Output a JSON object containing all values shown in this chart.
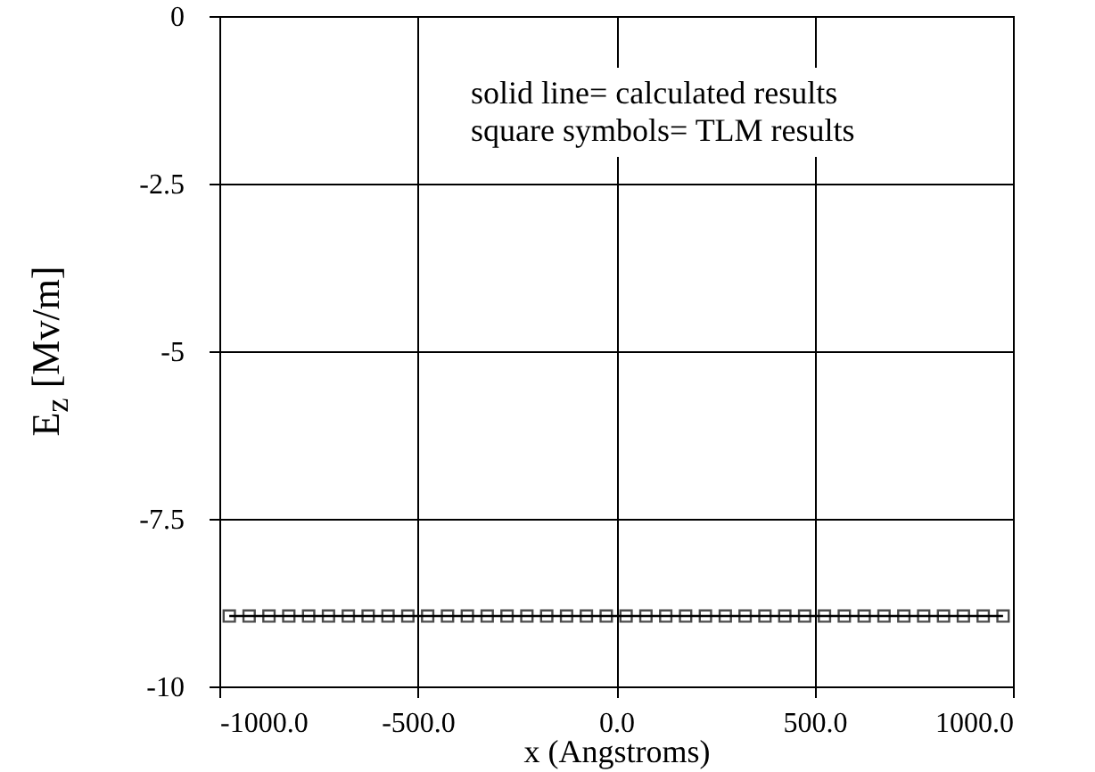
{
  "chart_data": {
    "type": "scatter",
    "xlabel": "x (Angstroms)",
    "ylabel": "E$_{z}$ [Mv/m]",
    "annotations": [
      "solid line= calculated  results",
      "square symbols= TLM results"
    ],
    "x": [
      -975,
      -925,
      -875,
      -825,
      -775,
      -725,
      -675,
      -625,
      -575,
      -525,
      -475,
      -425,
      -375,
      -325,
      -275,
      -225,
      -175,
      -125,
      -75,
      -25,
      25,
      75,
      125,
      175,
      225,
      275,
      325,
      375,
      425,
      475,
      525,
      575,
      625,
      675,
      725,
      775,
      825,
      875,
      925,
      975
    ],
    "series": [
      {
        "type": "line",
        "color": "#000000",
        "line_style": "solid",
        "values": [
          -8.95,
          -8.95,
          -8.95,
          -8.95,
          -8.95,
          -8.95,
          -8.95,
          -8.95,
          -8.95,
          -8.95,
          -8.95,
          -8.95,
          -8.95,
          -8.95,
          -8.95,
          -8.95,
          -8.95,
          -8.95,
          -8.95,
          -8.95,
          -8.95,
          -8.95,
          -8.95,
          -8.95,
          -8.95,
          -8.95,
          -8.95,
          -8.95,
          -8.95,
          -8.95,
          -8.95,
          -8.95,
          -8.95,
          -8.95,
          -8.95,
          -8.95,
          -8.95,
          -8.95,
          -8.95,
          -8.95
        ]
      },
      {
        "color": "#000000",
        "marker": "square",
        "values": [
          -8.95,
          -8.95,
          -8.95,
          -8.95,
          -8.95,
          -8.95,
          -8.95,
          -8.95,
          -8.95,
          -8.95,
          -8.95,
          -8.95,
          -8.95,
          -8.95,
          -8.95,
          -8.95,
          -8.95,
          -8.95,
          -8.95,
          -8.95,
          -8.95,
          -8.95,
          -8.95,
          -8.95,
          -8.95,
          -8.95,
          -8.95,
          -8.95,
          -8.95,
          -8.95,
          -8.95,
          -8.95,
          -8.95,
          -8.95,
          -8.95,
          -8.95,
          -8.95,
          -8.95,
          -8.95,
          -8.95
        ]
      }
    ],
    "xlim": [
      -1000,
      1000
    ],
    "ylim": [
      -10,
      0
    ],
    "xticks": [
      {
        "value": -1000,
        "label": "-1000.0"
      },
      {
        "value": -500,
        "label": "-500.0"
      },
      {
        "value": 0,
        "label": "0.0"
      },
      {
        "value": 500,
        "label": "500.0"
      },
      {
        "value": 1000,
        "label": "1000.0"
      }
    ],
    "yticks": [
      0,
      -2.5,
      -5,
      -7.5,
      -10
    ],
    "grid": true
  }
}
